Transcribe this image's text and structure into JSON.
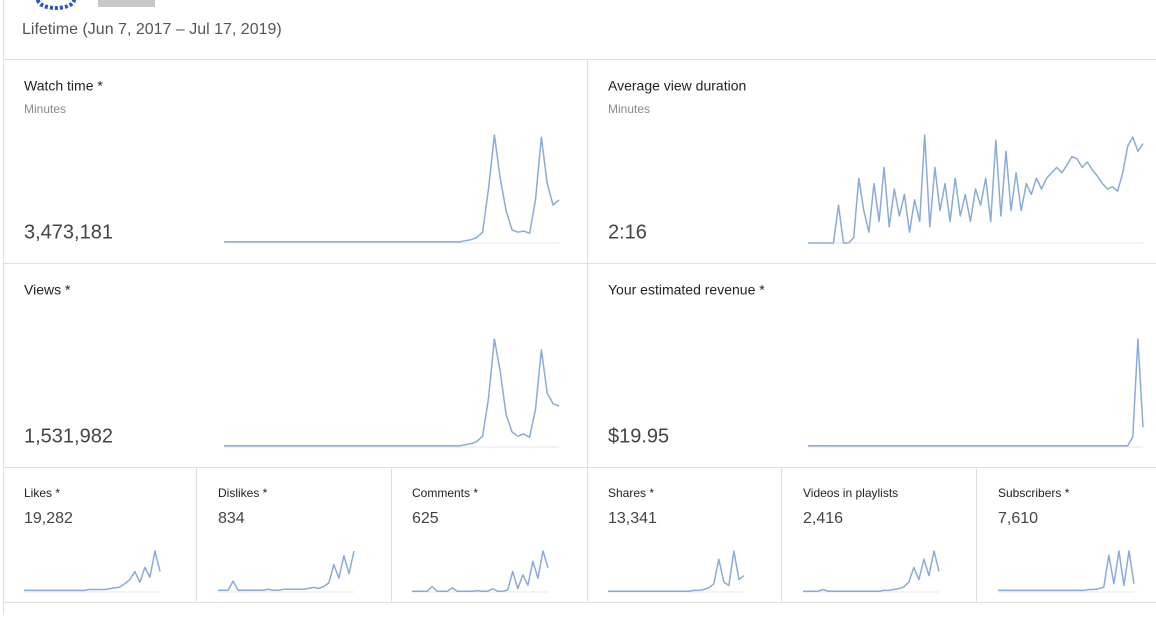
{
  "header": {
    "period": "Lifetime (Jun 7, 2017 – Jul 17, 2019)"
  },
  "cards": [
    {
      "title": "Watch time *",
      "unit": "Minutes",
      "value": "3,473,181",
      "trend": [
        1,
        1,
        1,
        1,
        1,
        1,
        1,
        1,
        1,
        1,
        1,
        1,
        1,
        1,
        1,
        1,
        1,
        1,
        1,
        1,
        1,
        1,
        1,
        1,
        1,
        1,
        1,
        1,
        1,
        1,
        1,
        1,
        1,
        1,
        1,
        1,
        1,
        1,
        1,
        1,
        1,
        2,
        3,
        5,
        10,
        50,
        100,
        60,
        30,
        12,
        10,
        11,
        9,
        40,
        98,
        55,
        35,
        40
      ]
    },
    {
      "title": "Average view duration",
      "unit": "Minutes",
      "value": "2:16",
      "trend": [
        0,
        0,
        0,
        0,
        0,
        0,
        35,
        0,
        0,
        5,
        60,
        30,
        10,
        55,
        20,
        70,
        15,
        50,
        25,
        45,
        10,
        40,
        20,
        100,
        15,
        70,
        30,
        55,
        20,
        60,
        25,
        45,
        20,
        50,
        35,
        60,
        20,
        95,
        25,
        85,
        30,
        65,
        30,
        55,
        45,
        60,
        50,
        60,
        65,
        70,
        65,
        72,
        80,
        78,
        70,
        75,
        68,
        62,
        55,
        50,
        52,
        48,
        65,
        90,
        98,
        85,
        92
      ]
    },
    {
      "title": "Views *",
      "value": "1,531,982",
      "trend": [
        1,
        1,
        1,
        1,
        1,
        1,
        1,
        1,
        1,
        1,
        1,
        1,
        1,
        1,
        1,
        1,
        1,
        1,
        1,
        1,
        1,
        1,
        1,
        1,
        1,
        1,
        1,
        1,
        1,
        1,
        1,
        1,
        1,
        1,
        1,
        1,
        1,
        1,
        1,
        1,
        1,
        2,
        3,
        5,
        10,
        45,
        100,
        70,
        30,
        14,
        10,
        12,
        9,
        35,
        90,
        50,
        40,
        38
      ]
    },
    {
      "title": "Your estimated revenue *",
      "value": "$19.95",
      "trend": [
        1,
        1,
        1,
        1,
        1,
        1,
        1,
        1,
        1,
        1,
        1,
        1,
        1,
        1,
        1,
        1,
        1,
        1,
        1,
        1,
        1,
        1,
        1,
        1,
        1,
        1,
        1,
        1,
        1,
        1,
        1,
        1,
        1,
        1,
        1,
        1,
        1,
        1,
        1,
        1,
        1,
        1,
        1,
        1,
        1,
        1,
        1,
        1,
        1,
        1,
        1,
        1,
        1,
        1,
        1,
        1,
        1,
        1,
        1,
        1,
        1,
        1,
        1,
        1,
        8,
        82,
        15
      ]
    },
    {
      "title": "Likes *",
      "value": "19,282",
      "trend": [
        2,
        2,
        2,
        2,
        2,
        2,
        2,
        2,
        2,
        2,
        2,
        2,
        2,
        3,
        3,
        3,
        3,
        4,
        5,
        6,
        10,
        15,
        25,
        12,
        30,
        18,
        50,
        25
      ]
    },
    {
      "title": "Dislikes *",
      "value": "834",
      "trend": [
        2,
        2,
        2,
        12,
        2,
        2,
        2,
        2,
        2,
        2,
        3,
        2,
        2,
        3,
        3,
        3,
        3,
        3,
        4,
        5,
        4,
        6,
        10,
        30,
        15,
        40,
        20,
        45
      ]
    },
    {
      "title": "Comments *",
      "value": "625",
      "trend": [
        1,
        1,
        1,
        1,
        8,
        1,
        1,
        1,
        6,
        1,
        1,
        1,
        1,
        2,
        1,
        1,
        5,
        1,
        1,
        3,
        30,
        5,
        25,
        10,
        45,
        20,
        60,
        35
      ]
    },
    {
      "title": "Shares *",
      "value": "13,341",
      "trend": [
        1,
        1,
        1,
        1,
        1,
        1,
        1,
        1,
        1,
        1,
        1,
        1,
        1,
        1,
        1,
        1,
        1,
        2,
        2,
        3,
        5,
        10,
        40,
        12,
        8,
        50,
        15,
        20
      ]
    },
    {
      "title": "Videos in playlists",
      "value": "2,416",
      "trend": [
        1,
        1,
        1,
        1,
        3,
        1,
        1,
        1,
        1,
        1,
        1,
        1,
        1,
        1,
        1,
        1,
        2,
        2,
        3,
        4,
        6,
        12,
        30,
        15,
        40,
        20,
        50,
        25
      ]
    },
    {
      "title": "Subscribers *",
      "value": "7,610",
      "trend": [
        2,
        2,
        2,
        2,
        2,
        2,
        2,
        2,
        2,
        2,
        2,
        2,
        2,
        2,
        2,
        2,
        2,
        2,
        3,
        3,
        4,
        6,
        45,
        10,
        50,
        8,
        50,
        10
      ]
    }
  ]
}
